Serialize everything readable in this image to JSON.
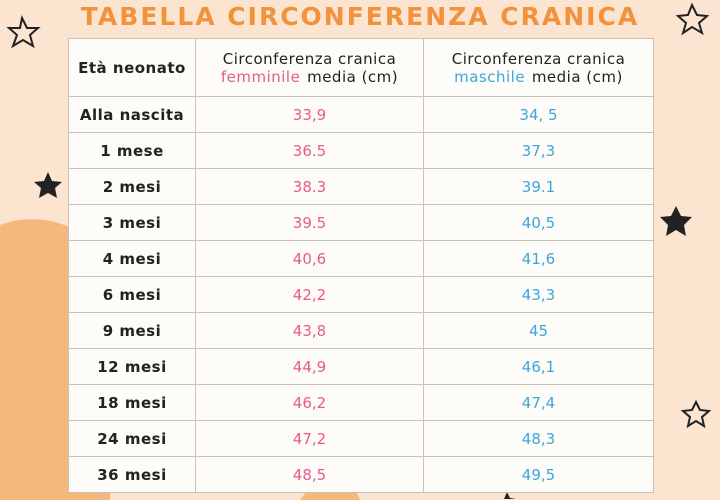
{
  "title": "TABELLA CIRCONFERENZA CRANICA",
  "table": {
    "header": [
      "Età neonato",
      {
        "line1": "Circonferenza cranica",
        "highlight": "femminile",
        "rest": "media (cm)"
      },
      {
        "line1": "Circonferenza cranica",
        "highlight": "maschile",
        "rest": "media (cm)"
      }
    ],
    "rows": [
      [
        "Alla nascita",
        "33,9",
        "34, 5"
      ],
      [
        "1 mese",
        "36.5",
        "37,3"
      ],
      [
        "2 mesi",
        "38.3",
        "39.1"
      ],
      [
        "3 mesi",
        "39.5",
        "40,5"
      ],
      [
        "4 mesi",
        "40,6",
        "41,6"
      ],
      [
        "6 mesi",
        "42,2",
        "43,3"
      ],
      [
        "9 mesi",
        "43,8",
        "45"
      ],
      [
        "12 mesi",
        "44,9",
        "46,1"
      ],
      [
        "18 mesi",
        "46,2",
        "47,4"
      ],
      [
        "24 mesi",
        "47,2",
        "48,3"
      ],
      [
        "36 mesi",
        "48,5",
        "49,5"
      ]
    ]
  }
}
